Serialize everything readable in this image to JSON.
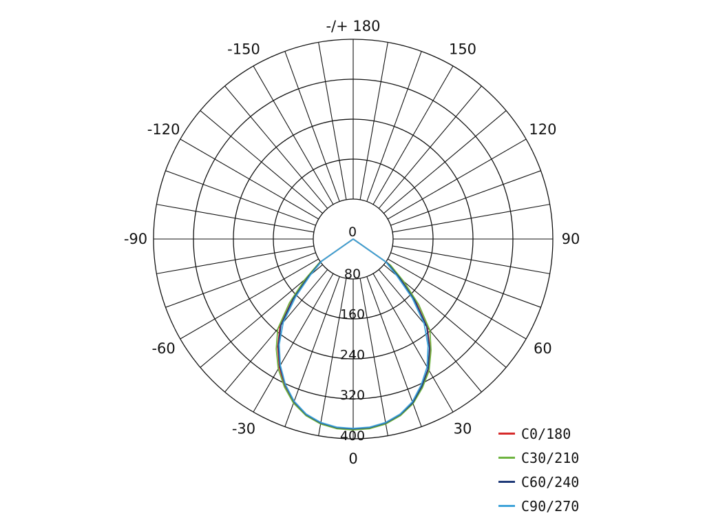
{
  "chart_data": {
    "type": "polar",
    "angle_labels": [
      {
        "angle": 180,
        "text": "-/+ 180"
      },
      {
        "angle": 150,
        "text": "150"
      },
      {
        "angle": -150,
        "text": "-150"
      },
      {
        "angle": 120,
        "text": "120"
      },
      {
        "angle": -120,
        "text": "-120"
      },
      {
        "angle": 90,
        "text": "90"
      },
      {
        "angle": -90,
        "text": "-90"
      },
      {
        "angle": 60,
        "text": "60"
      },
      {
        "angle": -60,
        "text": "-60"
      },
      {
        "angle": 30,
        "text": "30"
      },
      {
        "angle": -30,
        "text": "-30"
      },
      {
        "angle": 0,
        "text": "0"
      }
    ],
    "radial_ticks": [
      {
        "value": 0,
        "text": "0"
      },
      {
        "value": 80,
        "text": "80"
      },
      {
        "value": 160,
        "text": "160"
      },
      {
        "value": 240,
        "text": "240"
      },
      {
        "value": 320,
        "text": "320"
      },
      {
        "value": 400,
        "text": "400"
      }
    ],
    "radial_range": [
      0,
      400
    ],
    "angular_step": 10,
    "grid": true,
    "legend_position": "bottom-right",
    "series": [
      {
        "name": "C0/180",
        "color": "#d62a2a",
        "angles": [
          -60,
          -55,
          -50,
          -45,
          -40,
          -35,
          -30,
          -25,
          -20,
          -15,
          -10,
          -5,
          0,
          5,
          10,
          15,
          20,
          25,
          30,
          35,
          40,
          45,
          50,
          55,
          60
        ],
        "values": [
          0,
          80,
          118,
          170,
          225,
          260,
          292,
          320,
          343,
          360,
          370,
          375,
          376,
          375,
          370,
          360,
          345,
          322,
          298,
          265,
          228,
          175,
          122,
          85,
          0
        ]
      },
      {
        "name": "C30/210",
        "color": "#6db33f",
        "angles": [
          -60,
          -55,
          -50,
          -45,
          -40,
          -35,
          -30,
          -25,
          -20,
          -15,
          -10,
          -5,
          0,
          5,
          10,
          15,
          20,
          25,
          30,
          35,
          40,
          45,
          50,
          55,
          60
        ],
        "values": [
          0,
          82,
          125,
          178,
          232,
          265,
          296,
          322,
          345,
          361,
          371,
          376,
          377,
          376,
          371,
          361,
          346,
          324,
          300,
          268,
          236,
          183,
          130,
          90,
          0
        ]
      },
      {
        "name": "C60/240",
        "color": "#1f3a78",
        "angles": [
          -60,
          -55,
          -50,
          -45,
          -40,
          -35,
          -30,
          -25,
          -20,
          -15,
          -10,
          -5,
          0,
          5,
          10,
          15,
          20,
          25,
          30,
          35,
          40,
          45,
          50,
          55,
          60
        ],
        "values": [
          0,
          78,
          115,
          168,
          222,
          258,
          290,
          318,
          342,
          359,
          369,
          374,
          375,
          374,
          369,
          359,
          344,
          321,
          296,
          263,
          226,
          172,
          120,
          82,
          0
        ]
      },
      {
        "name": "C90/270",
        "color": "#3ea3d9",
        "angles": [
          -60,
          -55,
          -50,
          -45,
          -40,
          -35,
          -30,
          -25,
          -20,
          -15,
          -10,
          -5,
          0,
          5,
          10,
          15,
          20,
          25,
          30,
          35,
          40,
          45,
          50,
          55,
          60
        ],
        "values": [
          0,
          75,
          110,
          160,
          215,
          255,
          288,
          317,
          341,
          358,
          368,
          373,
          374,
          373,
          368,
          358,
          342,
          318,
          292,
          258,
          218,
          165,
          112,
          78,
          0
        ]
      }
    ]
  }
}
